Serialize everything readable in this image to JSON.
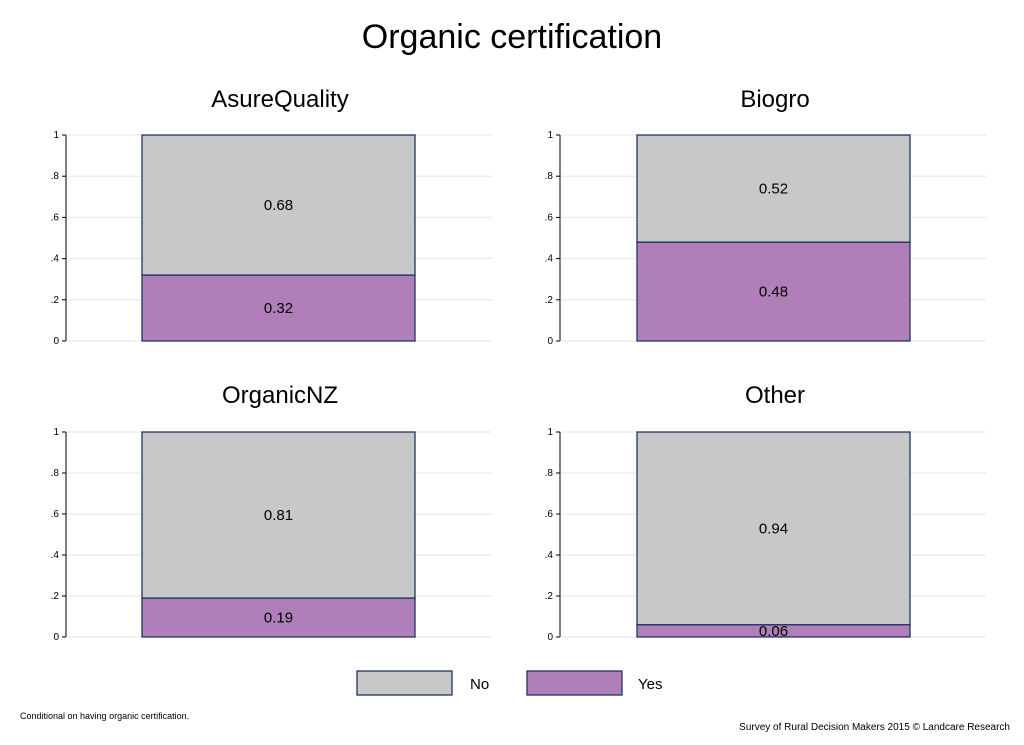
{
  "title": "Organic certification",
  "chart_data": {
    "type": "bar",
    "stacked": true,
    "title": "Organic certification",
    "ylim": [
      0,
      1
    ],
    "yticks": [
      {
        "value": 0,
        "label": "0"
      },
      {
        "value": 0.2,
        "label": ".2"
      },
      {
        "value": 0.4,
        "label": ".4"
      },
      {
        "value": 0.6,
        "label": ".6"
      },
      {
        "value": 0.8,
        "label": ".8"
      },
      {
        "value": 1,
        "label": "1"
      }
    ],
    "grid": true,
    "legend_position": "bottom",
    "series": [
      {
        "name": "No",
        "color": "#c8c8c8"
      },
      {
        "name": "Yes",
        "color": "#b07fb9"
      }
    ],
    "panels": [
      {
        "title": "AsureQuality",
        "yes": 0.32,
        "no": 0.68,
        "yes_label": "0.32",
        "no_label": "0.68"
      },
      {
        "title": "Biogro",
        "yes": 0.48,
        "no": 0.52,
        "yes_label": "0.48",
        "no_label": "0.52"
      },
      {
        "title": "OrganicNZ",
        "yes": 0.19,
        "no": 0.81,
        "yes_label": "0.19",
        "no_label": "0.81"
      },
      {
        "title": "Other",
        "yes": 0.06,
        "no": 0.94,
        "yes_label": "0.06",
        "no_label": "0.94"
      }
    ]
  },
  "colors": {
    "no": "#c8c8c8",
    "yes": "#b07fb9",
    "outline": "#1f3566",
    "grid": "#e6e6e6"
  },
  "note": "Conditional on having organic certification.",
  "credit": "Survey of Rural Decision Makers 2015 © Landcare Research"
}
